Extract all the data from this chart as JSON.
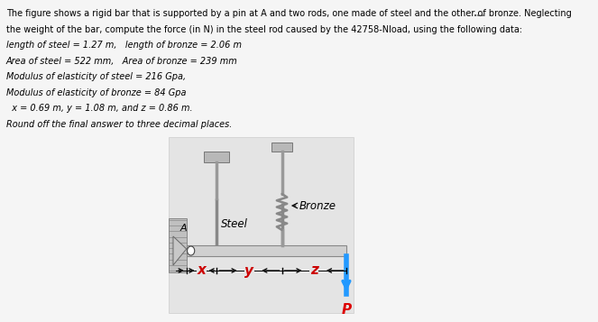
{
  "lines": [
    "The figure shows a rigid bar that is supported by a pin at A and two rods, one made of steel and the other of bronze. Neglecting",
    "the weight of the bar, compute the force (in N) in the steel rod caused by the 42758-Nload, using the following data:",
    "length of steel = 1.27 m,   length of bronze = 2.06 m",
    "Area of steel = 522 mm,   Area of bronze = 239 mm",
    "Modulus of elasticity of steel = 216 Gpa,",
    "Modulus of elasticity of bronze = 84 Gpa",
    "  x = 0.69 m, y = 1.08 m, and z = 0.86 m.",
    "Round off the final answer to three decimal places."
  ],
  "italic_from": 2,
  "dots": "...",
  "steel_label": "Steel",
  "bronze_label": "Bronze",
  "A_label": "A",
  "x_label": "x",
  "y_label": "y",
  "z_label": "z",
  "P_label": "P",
  "bg_color": "#f5f5f5",
  "diagram_bg": "#e8e8e8",
  "bar_color": "#cccccc",
  "rod_color": "#aaaaaa",
  "cap_color": "#aaaaaa",
  "wall_color": "#b0b0b0",
  "load_color": "#2299ff",
  "text_color": "#000000",
  "P_color": "#dd0000",
  "arrow_color": "#cc0000",
  "wall_fill": "#c8c8c8",
  "support_fill": "#d0d0d0"
}
